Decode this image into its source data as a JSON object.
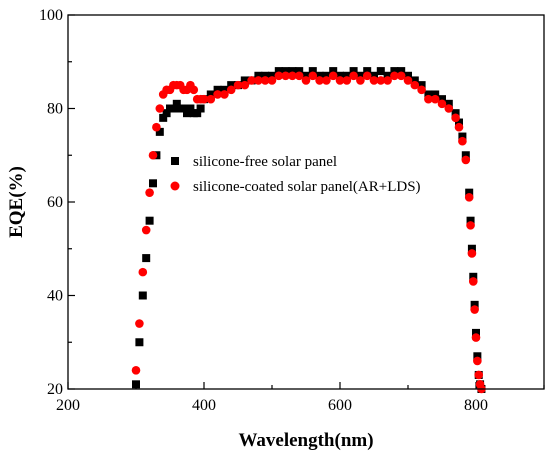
{
  "chart_data": {
    "type": "scatter",
    "title": "",
    "xlabel": "Wavelength(nm)",
    "ylabel": "EQE(%)",
    "xlim": [
      200,
      900
    ],
    "ylim": [
      20,
      100
    ],
    "xticks": [
      "200",
      "400",
      "600",
      "800"
    ],
    "yticks": [
      "20",
      "40",
      "60",
      "80",
      "100"
    ],
    "legend_position": "center-left",
    "series": [
      {
        "name": "silicone-free solar panel",
        "color": "#000000",
        "marker": "square",
        "x": [
          300,
          305,
          310,
          315,
          320,
          325,
          330,
          335,
          340,
          345,
          350,
          355,
          360,
          365,
          370,
          375,
          380,
          385,
          390,
          395,
          400,
          410,
          420,
          430,
          440,
          450,
          460,
          470,
          480,
          490,
          500,
          510,
          520,
          530,
          540,
          550,
          560,
          570,
          580,
          590,
          600,
          610,
          620,
          630,
          640,
          650,
          660,
          670,
          680,
          690,
          700,
          710,
          720,
          730,
          740,
          750,
          760,
          770,
          775,
          780,
          785,
          790,
          792,
          794,
          796,
          798,
          800,
          802,
          804,
          806,
          808
        ],
        "y": [
          21,
          30,
          40,
          48,
          56,
          64,
          70,
          75,
          78,
          79,
          80,
          80,
          81,
          80,
          80,
          79,
          80,
          79,
          79,
          80,
          82,
          83,
          84,
          84,
          85,
          85,
          86,
          86,
          87,
          87,
          87,
          88,
          88,
          88,
          88,
          87,
          88,
          87,
          87,
          88,
          87,
          87,
          88,
          87,
          88,
          87,
          88,
          87,
          88,
          88,
          87,
          86,
          85,
          83,
          83,
          82,
          81,
          79,
          77,
          74,
          70,
          62,
          56,
          50,
          44,
          38,
          32,
          27,
          23,
          21,
          20
        ]
      },
      {
        "name": "silicone-coated solar panel(AR+LDS)",
        "color": "#ff0000",
        "marker": "circle",
        "x": [
          300,
          305,
          310,
          315,
          320,
          325,
          330,
          335,
          340,
          345,
          350,
          355,
          360,
          365,
          370,
          375,
          380,
          385,
          390,
          395,
          400,
          410,
          420,
          430,
          440,
          450,
          460,
          470,
          480,
          490,
          500,
          510,
          520,
          530,
          540,
          550,
          560,
          570,
          580,
          590,
          600,
          610,
          620,
          630,
          640,
          650,
          660,
          670,
          680,
          690,
          700,
          710,
          720,
          730,
          740,
          750,
          760,
          770,
          775,
          780,
          785,
          790,
          792,
          794,
          796,
          798,
          800,
          802,
          804,
          806,
          808
        ],
        "y": [
          24,
          34,
          45,
          54,
          62,
          70,
          76,
          80,
          83,
          84,
          84,
          85,
          85,
          85,
          84,
          84,
          85,
          84,
          82,
          82,
          82,
          82,
          83,
          83,
          84,
          85,
          85,
          86,
          86,
          86,
          86,
          87,
          87,
          87,
          87,
          86,
          87,
          86,
          86,
          87,
          86,
          86,
          87,
          86,
          87,
          86,
          86,
          86,
          87,
          87,
          86,
          85,
          84,
          82,
          82,
          81,
          80,
          78,
          76,
          73,
          69,
          61,
          55,
          49,
          43,
          37,
          31,
          26,
          23,
          21,
          20
        ]
      }
    ]
  }
}
